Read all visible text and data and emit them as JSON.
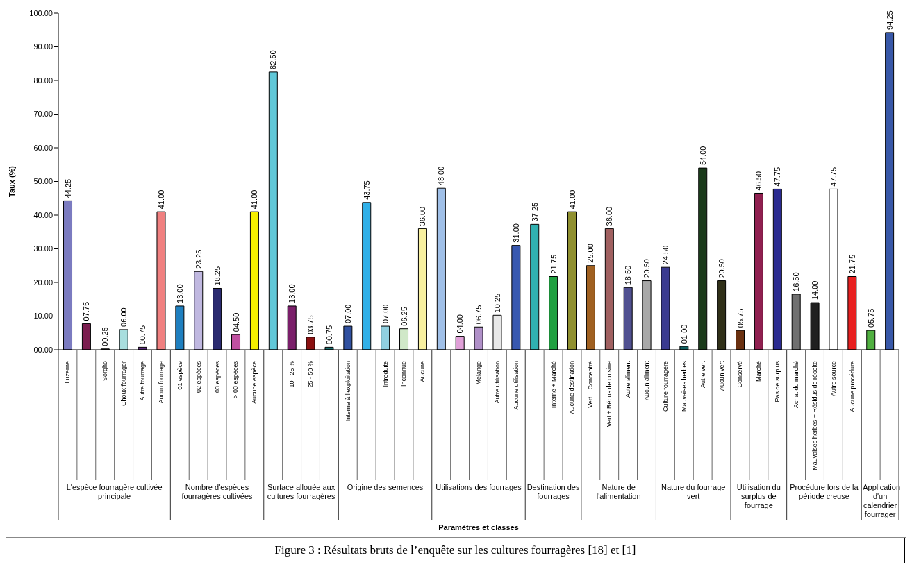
{
  "chart_data": {
    "type": "bar",
    "ylabel": "Taux (%)",
    "annotations": [
      "L'espèce fourragère cultivée principale",
      "Nombre d'espèces fourragères cultivées",
      "Surface allouée aux cultures fourragères",
      "Origine des semences",
      "Utilisations des fourrages",
      "Destination des fourrages",
      "Nature de l'alimentation",
      "Nature du fourrage vert",
      "Utilisation du surplus de fourrage",
      "Procédure lors de la période creuse",
      "Application d'un calendrier fourrager",
      "Paramètres et classes",
      "Figure 3 : Résultats bruts de l’enquête sur les cultures fourragères [18] et [1]"
    ],
    "categories": [
      "Luzerne",
      null,
      "Sorgho",
      "Choux fourrager",
      "Autre fourrage",
      "Aucun fourrage",
      "01 espèce",
      "02 espèces",
      "03 espèces",
      "> 03 espèces",
      "Aucune espèce",
      null,
      "10 - 25 %",
      "25 - 50 %",
      null,
      "Interne à l'exploitation",
      null,
      "Introduite",
      "Inconnue",
      "Aucune",
      null,
      null,
      "Mélange",
      "Autre utilisation",
      "Aucune utilisation",
      null,
      "Interne + Marché",
      "Aucune destination",
      "Vert + Concentré",
      "Vert + Rébus de cuisine",
      "Autre aliment",
      "Aucun aliment",
      "Culture fourragère",
      "Mauvaises herbes",
      "Autre vert",
      "Aucun vert",
      "Conservé",
      "Marché",
      "Pas de surplus",
      "Achat du marché",
      "Mauvaises herbes + Résidus de récolte",
      "Autre source",
      "Aucune procédure",
      null,
      null
    ],
    "values": [
      44.25,
      7.75,
      0.25,
      6.0,
      0.75,
      41.0,
      13.0,
      23.25,
      18.25,
      4.5,
      41.0,
      82.5,
      13.0,
      3.75,
      0.75,
      7.0,
      43.75,
      7.0,
      6.25,
      36.0,
      48.0,
      4.0,
      6.75,
      10.25,
      31.0,
      37.25,
      21.75,
      41.0,
      25.0,
      36.0,
      18.5,
      20.5,
      24.5,
      1.0,
      54.0,
      20.5,
      5.75,
      46.5,
      47.75,
      16.5,
      14.0,
      47.75,
      21.75,
      5.75,
      94.25
    ],
    "value_labels": [
      "44.25",
      "07.75",
      "00.25",
      "06.00",
      "00.75",
      "41.00",
      "13.00",
      "23.25",
      "18.25",
      "04.50",
      "41.00",
      "82.50",
      "13.00",
      "03.75",
      "00.75",
      "07.00",
      "43.75",
      "07.00",
      "06.25",
      "36.00",
      "48.00",
      "04.00",
      "06.75",
      "10.25",
      "31.00",
      "37.25",
      "21.75",
      "41.00",
      "25.00",
      "36.00",
      "18.50",
      "20.50",
      "24.50",
      "01.00",
      "54.00",
      "20.50",
      "05.75",
      "46.50",
      "47.75",
      "16.50",
      "14.00",
      "47.75",
      "21.75",
      "05.75",
      "94.25"
    ],
    "colors": [
      "#7b7bc0",
      "#7b1d4f",
      "#2a2a2a",
      "#a8dede",
      "#5a2a7a",
      "#f08080",
      "#1f7fbf",
      "#c0b8e0",
      "#2a2a70",
      "#c050a0",
      "#f5f000",
      "#60c8d8",
      "#7a1f6a",
      "#8a1010",
      "#1a7070",
      "#3050a0",
      "#30b0e8",
      "#90d0e0",
      "#d0e8c8",
      "#f8f0a0",
      "#a0c0e8",
      "#e0a0d8",
      "#b090c8",
      "#e8e8e8",
      "#3858b0",
      "#30b0b0",
      "#20a040",
      "#909030",
      "#a06020",
      "#a06060",
      "#505090",
      "#a8a8a8",
      "#3a3a90",
      "#106060",
      "#1a3a1a",
      "#303018",
      "#6a3010",
      "#902050",
      "#2a2a90",
      "#707070",
      "#202020",
      "#ffffff",
      "#e82020",
      "#50b040",
      "#3858a8"
    ],
    "ylim": [
      0,
      100
    ],
    "yticks": [
      {
        "value": 0,
        "label": "00.00"
      },
      {
        "value": 10,
        "label": "10.00"
      },
      {
        "value": 20,
        "label": "20.00"
      },
      {
        "value": 30,
        "label": "30.00"
      },
      {
        "value": 40,
        "label": "40.00"
      },
      {
        "value": 50,
        "label": "50.00"
      },
      {
        "value": 60,
        "label": "60.00"
      },
      {
        "value": 70,
        "label": "70.00"
      },
      {
        "value": 80,
        "label": "80.00"
      },
      {
        "value": 90,
        "label": "90.00"
      },
      {
        "value": 100,
        "label": "100.00"
      }
    ]
  }
}
